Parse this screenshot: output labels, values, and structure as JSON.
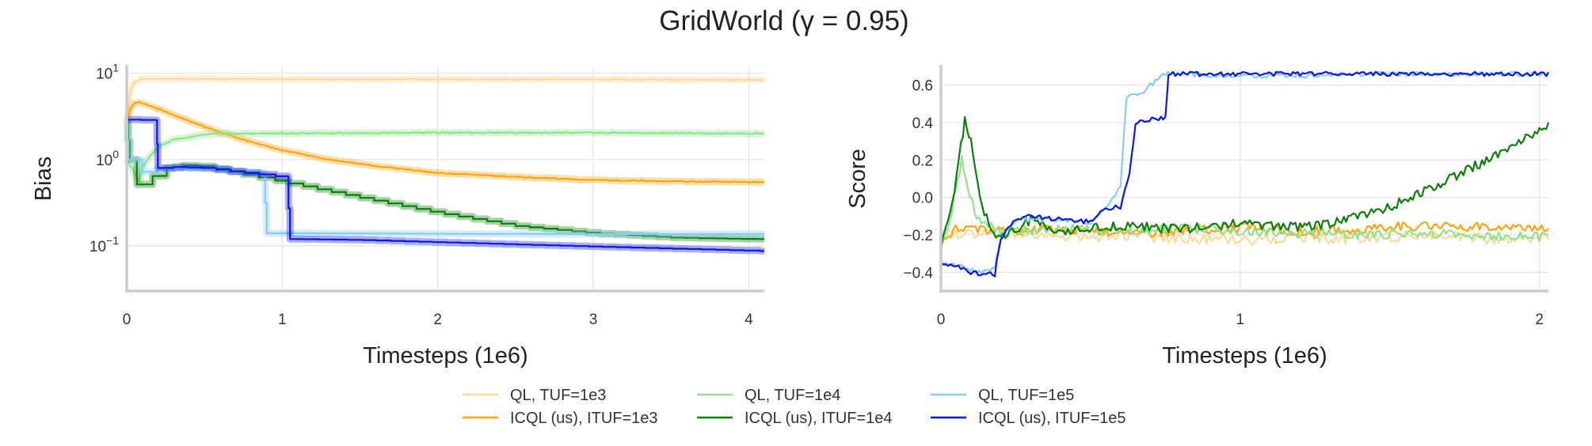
{
  "figure_title": "GridWorld (γ = 0.95)",
  "legend": [
    {
      "label": "QL, TUF=1e3",
      "color": "#fdd99a"
    },
    {
      "label": "ICQL (us), ITUF=1e3",
      "color": "#ffa30f"
    },
    {
      "label": "QL, TUF=1e4",
      "color": "#90e28d"
    },
    {
      "label": "ICQL (us), ITUF=1e4",
      "color": "#0a7f0a"
    },
    {
      "label": "QL, TUF=1e5",
      "color": "#86ccf2"
    },
    {
      "label": "ICQL (us), ITUF=1e5",
      "color": "#0a16e6"
    }
  ],
  "chart_data": [
    {
      "type": "line",
      "title": "",
      "xlabel": "Timesteps (1e6)",
      "ylabel": "Bias",
      "yscale": "log",
      "xlim": [
        0,
        4.1
      ],
      "ylim": [
        0.03,
        12
      ],
      "xticks": [
        0,
        1,
        2,
        3,
        4
      ],
      "xtick_labels": [
        "0",
        "1",
        "2",
        "3",
        "4"
      ],
      "yticks": [
        0.1,
        1,
        10
      ],
      "ytick_labels": [
        {
          "base": "10",
          "exp": "−1"
        },
        {
          "base": "10",
          "exp": "0"
        },
        {
          "base": "10",
          "exp": "1"
        }
      ],
      "grid": true,
      "series": [
        {
          "name": "QL, TUF=1e3",
          "color": "#fdd99a",
          "band": true,
          "x": [
            0,
            0.02,
            0.05,
            0.1,
            0.2,
            0.5,
            1,
            2,
            3,
            4,
            4.1
          ],
          "y": [
            2.8,
            6.0,
            8.0,
            8.6,
            8.6,
            8.6,
            8.5,
            8.5,
            8.5,
            8.4,
            8.3
          ]
        },
        {
          "name": "ICQL (us), ITUF=1e3",
          "color": "#ffa30f",
          "band": true,
          "x": [
            0,
            0.02,
            0.05,
            0.08,
            0.1,
            0.2,
            0.3,
            0.5,
            0.7,
            1.0,
            1.3,
            1.6,
            2.0,
            2.5,
            3.0,
            3.5,
            4.0,
            4.1
          ],
          "y": [
            2.6,
            3.8,
            4.5,
            4.6,
            4.5,
            3.9,
            3.3,
            2.4,
            1.8,
            1.28,
            1.0,
            0.84,
            0.7,
            0.63,
            0.58,
            0.56,
            0.55,
            0.55
          ]
        },
        {
          "name": "QL, TUF=1e4",
          "color": "#90e28d",
          "band": true,
          "x": [
            0,
            0.05,
            0.08,
            0.1,
            0.15,
            0.2,
            0.3,
            0.5,
            0.6,
            0.8,
            1.0,
            2.0,
            3.0,
            4.0,
            4.1
          ],
          "y": [
            1.0,
            0.7,
            0.55,
            0.8,
            1.1,
            1.4,
            1.7,
            1.95,
            2.0,
            2.0,
            2.0,
            2.05,
            2.05,
            2.0,
            2.0
          ]
        },
        {
          "name": "ICQL (us), ITUF=1e4",
          "color": "#0a7f0a",
          "band": true,
          "steps": true,
          "x": [
            0,
            0.02,
            0.05,
            0.08,
            0.1,
            0.15,
            0.2,
            0.3,
            0.4,
            0.5,
            0.7,
            1.0,
            1.5,
            2.0,
            2.5,
            3.0,
            3.5,
            4.0,
            4.1
          ],
          "y": [
            2.7,
            1.0,
            0.7,
            0.38,
            0.45,
            0.6,
            0.75,
            0.85,
            0.86,
            0.82,
            0.7,
            0.55,
            0.36,
            0.24,
            0.17,
            0.14,
            0.125,
            0.12,
            0.12
          ]
        },
        {
          "name": "QL, TUF=1e5",
          "color": "#86ccf2",
          "band": true,
          "steps": true,
          "x": [
            0,
            0.01,
            0.05,
            0.1,
            0.15,
            0.2,
            0.3,
            0.5,
            0.7,
            0.88,
            0.9,
            1.0,
            2.0,
            3.0,
            4.0,
            4.1
          ],
          "y": [
            2.7,
            1.0,
            0.72,
            0.72,
            0.75,
            0.78,
            0.8,
            0.78,
            0.72,
            0.7,
            0.14,
            0.14,
            0.138,
            0.137,
            0.137,
            0.137
          ]
        },
        {
          "name": "ICQL (us), ITUF=1e5",
          "color": "#0a16e6",
          "band": true,
          "steps": true,
          "x": [
            0,
            0.19,
            0.2,
            0.3,
            0.5,
            0.7,
            0.9,
            1.03,
            1.05,
            1.5,
            2.0,
            2.5,
            3.0,
            3.5,
            4.0,
            4.1
          ],
          "y": [
            2.9,
            2.85,
            0.8,
            0.82,
            0.8,
            0.72,
            0.66,
            0.62,
            0.12,
            0.117,
            0.11,
            0.104,
            0.098,
            0.093,
            0.088,
            0.087
          ]
        }
      ]
    },
    {
      "type": "line",
      "title": "",
      "xlabel": "Timesteps (1e6)",
      "ylabel": "Score",
      "yscale": "linear",
      "xlim": [
        0,
        2.03
      ],
      "ylim": [
        -0.5,
        0.7
      ],
      "xticks": [
        0,
        1,
        2
      ],
      "xtick_labels": [
        "0",
        "1",
        "2"
      ],
      "yticks": [
        -0.4,
        -0.2,
        0.0,
        0.2,
        0.4,
        0.6
      ],
      "ytick_labels": [
        "−0.4",
        "−0.2",
        "0.0",
        "0.2",
        "0.4",
        "0.6"
      ],
      "grid": true,
      "series": [
        {
          "name": "QL, TUF=1e3",
          "color": "#fdd99a",
          "noise": 0.03,
          "x": [
            0,
            0.2,
            0.4,
            0.6,
            0.8,
            1.0,
            1.2,
            1.4,
            1.6,
            1.8,
            2.0,
            2.03
          ],
          "y": [
            -0.2,
            -0.19,
            -0.21,
            -0.2,
            -0.22,
            -0.23,
            -0.21,
            -0.22,
            -0.2,
            -0.22,
            -0.21,
            -0.21
          ]
        },
        {
          "name": "ICQL (us), ITUF=1e3",
          "color": "#ffa30f",
          "noise": 0.025,
          "x": [
            0,
            0.05,
            0.1,
            0.2,
            0.4,
            0.6,
            0.8,
            1.0,
            1.2,
            1.4,
            1.6,
            1.8,
            2.0,
            2.03
          ],
          "y": [
            -0.25,
            -0.17,
            -0.16,
            -0.18,
            -0.17,
            -0.19,
            -0.18,
            -0.16,
            -0.18,
            -0.17,
            -0.15,
            -0.16,
            -0.17,
            -0.17
          ]
        },
        {
          "name": "QL, TUF=1e4",
          "color": "#90e28d",
          "noise": 0.025,
          "x": [
            0,
            0.03,
            0.05,
            0.07,
            0.09,
            0.12,
            0.15,
            0.2,
            0.4,
            0.6,
            0.8,
            1.0,
            1.2,
            1.4,
            1.6,
            1.8,
            2.0,
            2.03
          ],
          "y": [
            -0.25,
            -0.12,
            0.05,
            0.2,
            0.05,
            -0.1,
            -0.15,
            -0.18,
            -0.17,
            -0.18,
            -0.16,
            -0.18,
            -0.19,
            -0.2,
            -0.19,
            -0.2,
            -0.21,
            -0.21
          ]
        },
        {
          "name": "ICQL (us), ITUF=1e4",
          "color": "#0a7f0a",
          "noise": 0.025,
          "x": [
            0,
            0.03,
            0.06,
            0.08,
            0.1,
            0.13,
            0.16,
            0.2,
            0.3,
            0.4,
            0.6,
            0.8,
            1.0,
            1.2,
            1.3,
            1.4,
            1.5,
            1.6,
            1.7,
            1.8,
            1.9,
            2.0,
            2.03
          ],
          "y": [
            -0.27,
            -0.1,
            0.2,
            0.41,
            0.3,
            0.0,
            -0.15,
            -0.22,
            -0.12,
            -0.18,
            -0.15,
            -0.17,
            -0.14,
            -0.16,
            -0.14,
            -0.1,
            -0.05,
            0.02,
            0.1,
            0.18,
            0.27,
            0.35,
            0.4
          ]
        },
        {
          "name": "QL, TUF=1e5",
          "color": "#86ccf2",
          "noise": 0.012,
          "x": [
            0,
            0.05,
            0.12,
            0.18,
            0.2,
            0.25,
            0.3,
            0.4,
            0.5,
            0.55,
            0.6,
            0.62,
            0.65,
            0.68,
            0.7,
            0.75,
            1.0,
            1.2,
            1.5,
            1.8,
            2.0,
            2.03
          ],
          "y": [
            -0.35,
            -0.36,
            -0.4,
            -0.38,
            -0.22,
            -0.12,
            -0.12,
            -0.12,
            -0.14,
            -0.05,
            0.05,
            0.53,
            0.55,
            0.56,
            0.6,
            0.66,
            0.65,
            0.65,
            0.66,
            0.66,
            0.66,
            0.66
          ]
        },
        {
          "name": "ICQL (us), ITUF=1e5",
          "color": "#0a16e6",
          "noise": 0.012,
          "x": [
            0,
            0.05,
            0.1,
            0.15,
            0.18,
            0.2,
            0.25,
            0.3,
            0.4,
            0.5,
            0.55,
            0.6,
            0.63,
            0.65,
            0.72,
            0.75,
            0.76,
            1.0,
            1.2,
            1.5,
            1.8,
            2.0,
            2.03
          ],
          "y": [
            -0.35,
            -0.36,
            -0.4,
            -0.41,
            -0.41,
            -0.22,
            -0.12,
            -0.1,
            -0.12,
            -0.13,
            -0.06,
            -0.05,
            0.12,
            0.4,
            0.42,
            0.42,
            0.66,
            0.66,
            0.66,
            0.66,
            0.66,
            0.66,
            0.66
          ]
        }
      ]
    }
  ]
}
